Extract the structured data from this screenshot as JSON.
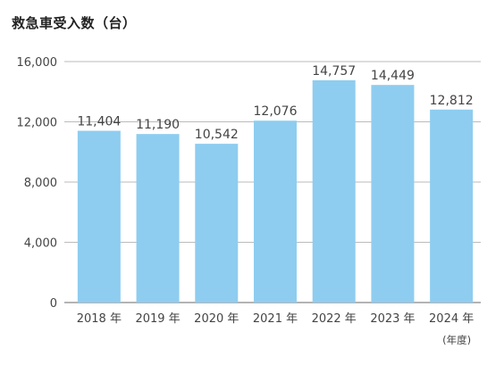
{
  "chart_data": {
    "type": "bar",
    "title": "救急車受入数（台）",
    "categories": [
      "2018 年",
      "2019 年",
      "2020 年",
      "2021 年",
      "2022 年",
      "2023 年",
      "2024 年"
    ],
    "values": [
      11404,
      11190,
      10542,
      12076,
      14757,
      14449,
      12812
    ],
    "value_labels": [
      "11,404",
      "11,190",
      "10,542",
      "12,076",
      "14,757",
      "14,449",
      "12,812"
    ],
    "y_ticks": [
      0,
      4000,
      8000,
      12000,
      16000
    ],
    "y_tick_labels": [
      "0",
      "4,000",
      "8,000",
      "12,000",
      "16,000"
    ],
    "ylim": [
      0,
      16000
    ],
    "x_unit": "(年度)",
    "grid": true,
    "bar_color": "#8ecdf0",
    "grid_color": "#bbbbbb"
  }
}
